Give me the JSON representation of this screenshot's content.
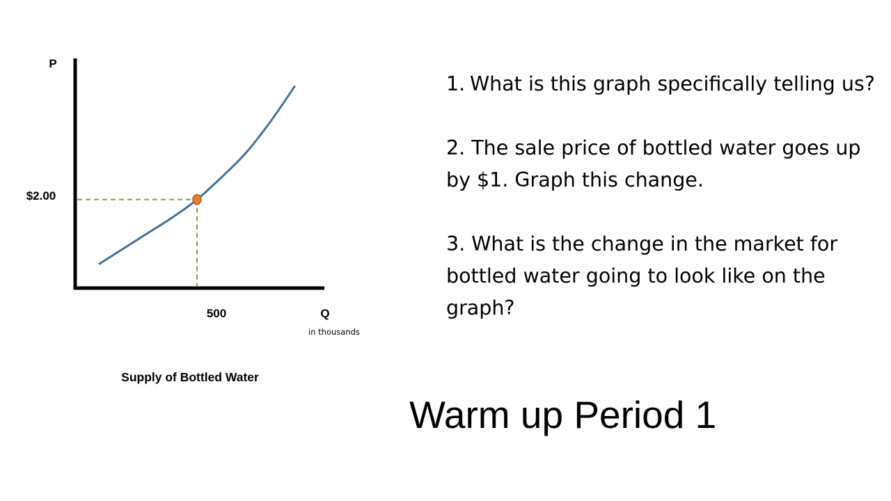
{
  "slide": {
    "title": "Warm up Period 1",
    "questions": {
      "q1_number": "1.",
      "q1_text": "What is this graph specifically telling us?",
      "q2": "2. The sale price of bottled water goes up by $1. Graph this change.",
      "q3": "3. What is the change in the market for bottled water going to look like on the graph?"
    }
  },
  "chart_data": {
    "type": "line",
    "title": "Supply of Bottled Water",
    "ylabel": "P",
    "xlabel": "Q",
    "x_unit": "in thousands",
    "tick_labels": {
      "x": "500",
      "y": "$2.00"
    },
    "series": [
      {
        "x": [
          100,
          200,
          300,
          400,
          500,
          600,
          700,
          800,
          900
        ],
        "y": [
          0.55,
          0.9,
          1.25,
          1.6,
          2.0,
          2.5,
          3.05,
          3.75,
          4.55
        ]
      }
    ],
    "highlighted_point": {
      "x": 500,
      "y": 2.0
    },
    "xlim": [
      0,
      1000
    ],
    "ylim": [
      0,
      5
    ],
    "grid": false,
    "colors": {
      "curve": "#41719c",
      "guide": "#70ad47",
      "point": "#ed7d31",
      "point_outline": "#ae5a21",
      "axis": "#000000"
    }
  }
}
